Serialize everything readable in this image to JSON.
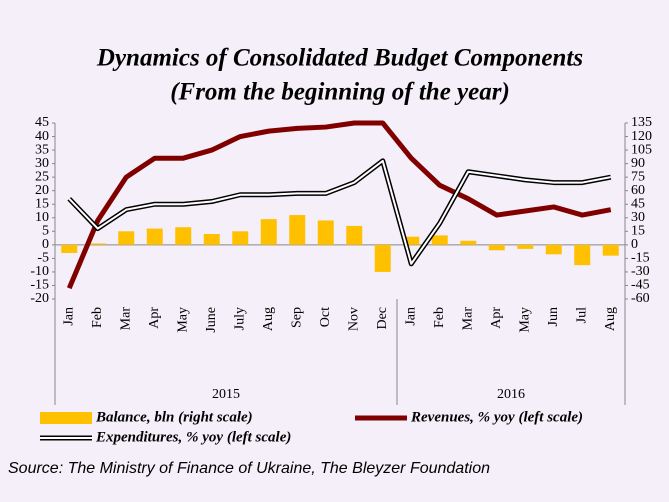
{
  "chart_data": {
    "type": "bar",
    "title": [
      "Dynamics of Consolidated Budget Components",
      "(From the beginning of the year)"
    ],
    "categories": [
      "Jan",
      "Feb",
      "Mar",
      "Apr",
      "May",
      "June",
      "July",
      "Aug",
      "Sep",
      "Oct",
      "Nov",
      "Dec",
      "Jan",
      "Feb",
      "Mar",
      "Apr",
      "May",
      "Jun",
      "Jul",
      "Aug"
    ],
    "year_labels": [
      "2015",
      "2016"
    ],
    "series": [
      {
        "name": "Balance, bln (right scale)",
        "type": "bar",
        "axis": "y2",
        "color": "#ffc000",
        "values": [
          -9,
          1.5,
          15,
          18,
          19.5,
          12,
          15,
          28.5,
          33,
          27,
          21,
          -30,
          9,
          10.5,
          4.5,
          -6,
          -4.5,
          -10.5,
          -22.5,
          -12
        ]
      },
      {
        "name": "Revenues, % yoy (left scale)",
        "type": "line",
        "color": "#800000",
        "values": [
          -16,
          9,
          25,
          32,
          32,
          35,
          40,
          42,
          43,
          43.5,
          45,
          45,
          32,
          22,
          17,
          11,
          12.5,
          14,
          11,
          13
        ]
      },
      {
        "name": "Expenditures, % yoy (left scale)",
        "type": "double-line",
        "color": "#000000",
        "values": [
          17,
          6,
          13,
          15,
          15,
          16,
          18.5,
          18.5,
          19,
          19,
          23,
          31,
          -7,
          8,
          27,
          25.5,
          24,
          23,
          23,
          25
        ]
      }
    ],
    "ylim": [
      -20,
      45
    ],
    "yticks": [
      -20,
      -15,
      -10,
      -5,
      0,
      5,
      10,
      15,
      20,
      25,
      30,
      35,
      40,
      45
    ],
    "y2lim": [
      -60,
      135
    ],
    "y2ticks": [
      -60,
      -45,
      -30,
      -15,
      0,
      15,
      30,
      45,
      60,
      75,
      90,
      105,
      120,
      135
    ],
    "background": "#f4eff8",
    "source": "Source: The Ministry of Finance of Ukraine, The Bleyzer Foundation"
  }
}
